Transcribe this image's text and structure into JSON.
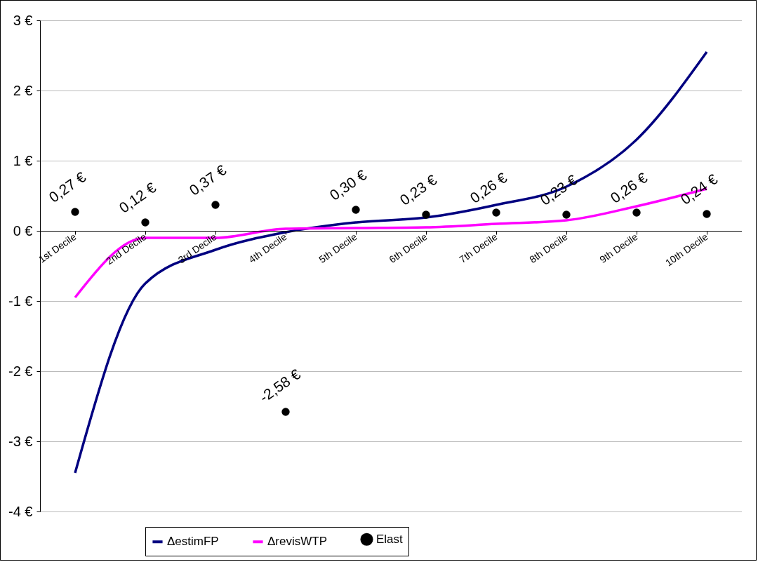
{
  "chart_data": {
    "type": "line",
    "categories": [
      "1st Decile",
      "2nd Decile",
      "3rd Decile",
      "4th Decile",
      "5th Decile",
      "6th Decile",
      "7th Decile",
      "8th Decile",
      "9th Decile",
      "10th Decile"
    ],
    "series": [
      {
        "name": "ΔestimFP",
        "type": "line",
        "color": "#000080",
        "values": [
          -3.45,
          -0.75,
          -0.27,
          -0.02,
          0.12,
          0.19,
          0.37,
          0.63,
          1.3,
          2.55
        ]
      },
      {
        "name": "ΔrevisWTP",
        "type": "line",
        "color": "#ff00ff",
        "values": [
          -0.95,
          -0.1,
          -0.1,
          0.03,
          0.04,
          0.05,
          0.1,
          0.15,
          0.35,
          0.6
        ]
      },
      {
        "name": "Elast",
        "type": "scatter",
        "marker": "circle",
        "color": "#000000",
        "values": [
          0.27,
          0.12,
          0.37,
          -2.58,
          0.3,
          0.23,
          0.26,
          0.23,
          0.26,
          0.24
        ],
        "value_labels": [
          "0,27 €",
          "0,12 €",
          "0,37 €",
          "-2,58 €",
          "0,30 €",
          "0,23 €",
          "0,26 €",
          "0,23 €",
          "0,26 €",
          "0,24 €"
        ]
      }
    ],
    "ylim": [
      -4,
      3
    ],
    "yticks": [
      {
        "value": -4,
        "label": "-4 €"
      },
      {
        "value": -3,
        "label": "-3 €"
      },
      {
        "value": -2,
        "label": "-2 €"
      },
      {
        "value": -1,
        "label": "-1 €"
      },
      {
        "value": 0,
        "label": "0 €"
      },
      {
        "value": 1,
        "label": "1 €"
      },
      {
        "value": 2,
        "label": "2 €"
      },
      {
        "value": 3,
        "label": "3 €"
      }
    ],
    "grid": "y",
    "legend": "bottom"
  }
}
